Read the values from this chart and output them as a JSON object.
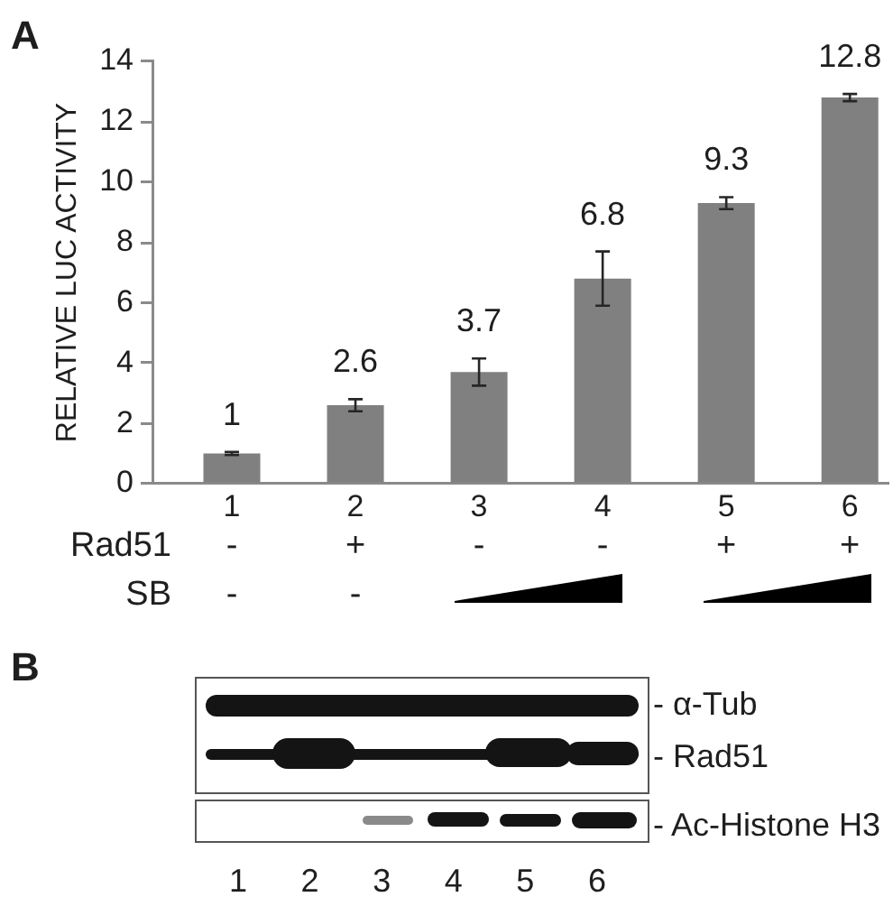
{
  "chart_data": {
    "type": "bar",
    "title": "A",
    "ylabel": "RELATIVE LUC ACTIVITY",
    "categories": [
      "1",
      "2",
      "3",
      "4",
      "5",
      "6"
    ],
    "values": [
      1,
      2.6,
      3.7,
      6.8,
      9.3,
      12.8
    ],
    "errors": [
      0.05,
      0.2,
      0.45,
      0.9,
      0.2,
      0.12
    ],
    "color": "#808080",
    "ylim": [
      0,
      14
    ],
    "yticks": [
      0,
      2,
      4,
      6,
      8,
      10,
      12,
      14
    ],
    "data_labels": true,
    "annotations": [
      "Rad51",
      "-",
      "+",
      "-",
      "-",
      "+",
      "+",
      "SB",
      "-",
      "-",
      "B",
      "- α-Tub",
      "- Rad51",
      "- Ac-Histone H3",
      "1",
      "2",
      "3",
      "4",
      "5",
      "6"
    ]
  }
}
